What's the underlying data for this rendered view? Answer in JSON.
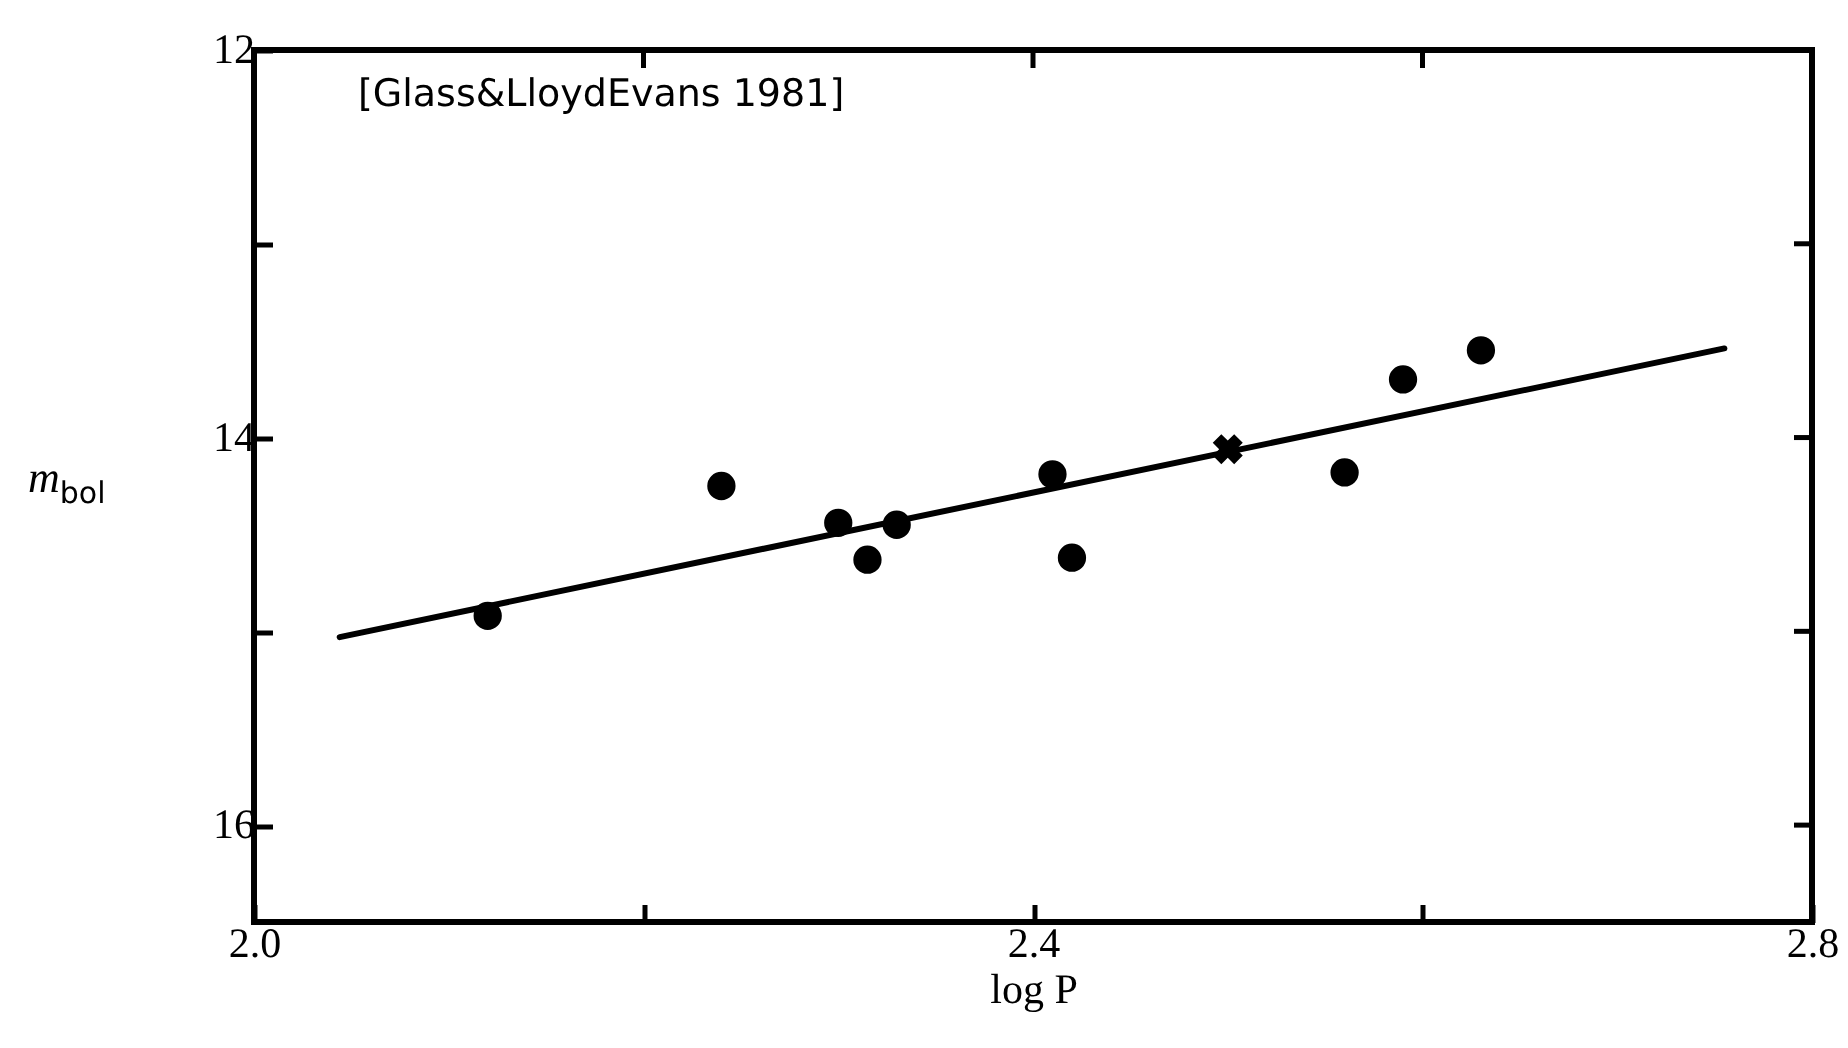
{
  "chart_data": {
    "type": "scatter",
    "xlabel": "log P",
    "ylabel": "m$_{bol}$",
    "annotations": [
      "[Glass&LloydEvans 1981]"
    ],
    "xlim": [
      2.0,
      2.8
    ],
    "ylim": [
      16.5,
      12
    ],
    "xticks": [
      {
        "value": 2.0,
        "label": "2.0"
      },
      {
        "value": 2.2,
        "label": null
      },
      2.4,
      {
        "value": 2.6,
        "label": null
      },
      2.8
    ],
    "yticks": [
      12,
      {
        "value": 13,
        "label": null
      },
      14,
      {
        "value": 15,
        "label": null
      },
      16
    ],
    "grid": false,
    "series": [
      {
        "marker": "circle",
        "color": "#000000",
        "x": [
          2.12,
          2.24,
          2.3,
          2.315,
          2.33,
          2.41,
          2.42,
          2.56,
          2.59,
          2.63
        ],
        "values": [
          14.92,
          14.25,
          14.44,
          14.63,
          14.45,
          14.19,
          14.62,
          14.18,
          13.7,
          13.55
        ]
      },
      {
        "marker": "cross",
        "color": "#000000",
        "x": [
          2.5
        ],
        "values": [
          14.06
        ]
      },
      {
        "type": "line",
        "marker": "none",
        "line_style": "solid",
        "color": "#000000",
        "x": [
          2.044,
          2.755
        ],
        "values": [
          15.03,
          13.54
        ]
      }
    ]
  }
}
